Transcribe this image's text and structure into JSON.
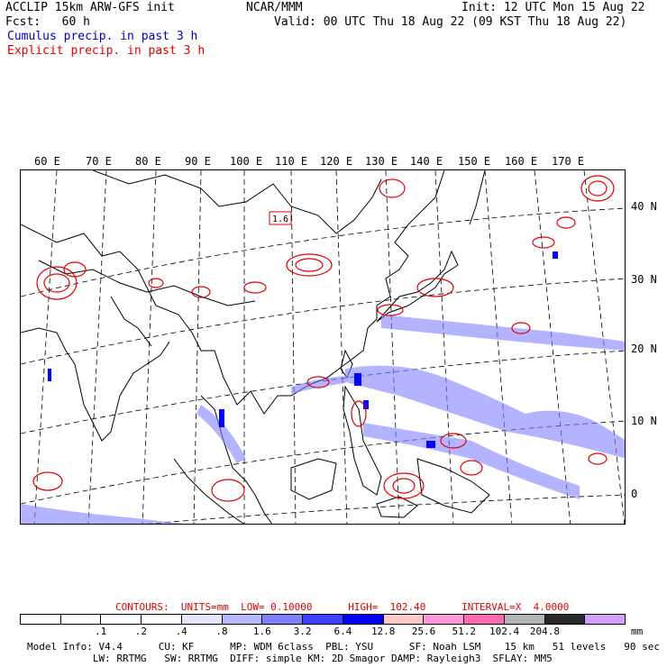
{
  "header": {
    "line1_left": "ACCLIP 15km ARW-GFS init",
    "line1_center": "NCAR/MMM",
    "line1_right": "Init: 12 UTC Mon 15 Aug 22",
    "line2_left": "Fcst:   60 h",
    "line2_right": "Valid: 00 UTC Thu 18 Aug 22 (09 KST Thu 18 Aug 22)",
    "legend_cumulus": "Cumulus precip. in past 3 h",
    "legend_explicit": "Explicit precip. in past 3 h"
  },
  "colors": {
    "cumulus": "#0000c0",
    "explicit": "#e00000",
    "coast": "#000000"
  },
  "map": {
    "lon_labels": [
      "60 E",
      "70 E",
      "80 E",
      "90 E",
      "100 E",
      "110 E",
      "120 E",
      "130 E",
      "140 E",
      "150 E",
      "160 E",
      "170 E"
    ],
    "lat_labels": [
      "40 N",
      "30 N",
      "20 N",
      "10 N",
      "0"
    ],
    "contour_label": "1.6"
  },
  "contours": {
    "label": "CONTOURS:  UNITS=mm  LOW= 0.10000      HIGH=  102.40      INTERVAL=X  4.0000"
  },
  "colorbar": {
    "colors": [
      "#ffffff",
      "#ffffff",
      "#ffffff",
      "#ffffff",
      "#e6e6ff",
      "#b8b8ff",
      "#8080ff",
      "#4040ff",
      "#0000ff",
      "#ffc8c8",
      "#ff9ad6",
      "#ff6ab0",
      "#b4b4b4",
      "#2a2a2a",
      "#d0a0ff"
    ],
    "tick_labels": [
      ".1",
      ".2",
      ".4",
      ".8",
      "1.6",
      "3.2",
      "6.4",
      "12.8",
      "25.6",
      "51.2",
      "102.4",
      "204.8"
    ],
    "unit": "mm"
  },
  "footer": {
    "line1": "Model Info: V4.4      CU: KF      MP: WDM 6class  PBL: YSU      SF: Noah LSM    15 km   51 levels   90 sec",
    "line2": "           LW: RRTMG   SW: RRTMG  DIFF: simple KM: 2D Smagor DAMP: Rayleigh3  SFLAY: MM5"
  }
}
